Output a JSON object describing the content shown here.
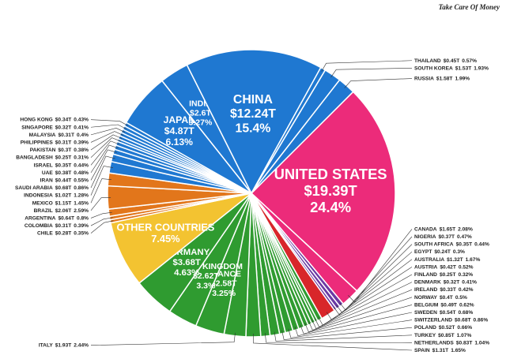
{
  "chart_data": {
    "type": "voronoi-treemap",
    "source": "Take Care Of Money",
    "categories": [
      "UNITED STATES",
      "CANADA",
      "NIGERIA",
      "SOUTH AFRICA",
      "EGYPT",
      "AUSTRALIA",
      "AUSTRIA",
      "FINLAND",
      "DENMARK",
      "IRELAND",
      "NORWAY",
      "BELGIUM",
      "SWEDEN",
      "SWITZERLAND",
      "POLAND",
      "TURKEY",
      "NETHERLANDS",
      "SPAIN",
      "ITALY",
      "FRANCE",
      "UNITED KINGDOM",
      "GERMANY",
      "OTHER COUNTRIES",
      "CHILE",
      "COLOMBIA",
      "ARGENTINA",
      "BRAZIL",
      "MEXICO",
      "INDONESIA",
      "SAUDI ARABIA",
      "IRAN",
      "UAE",
      "ISRAEL",
      "BANGLADESH",
      "PAKISTAN",
      "PHILIPPINES",
      "MALAYSIA",
      "SINGAPORE",
      "HONG KONG",
      "JAPAN",
      "INDIA",
      "CHINA",
      "THAILAND",
      "SOUTH KOREA",
      "RUSSIA"
    ],
    "colors": [
      "#ec2b7a",
      "#ec2b7a",
      "#6b3aa3",
      "#6b3aa3",
      "#6b3aa3",
      "#d8262a",
      "#2f9b30",
      "#2f9b30",
      "#2f9b30",
      "#2f9b30",
      "#2f9b30",
      "#2f9b30",
      "#2f9b30",
      "#2f9b30",
      "#2f9b30",
      "#2f9b30",
      "#2f9b30",
      "#2f9b30",
      "#2f9b30",
      "#2f9b30",
      "#2f9b30",
      "#2f9b30",
      "#f3c331",
      "#e2761b",
      "#e2761b",
      "#e2761b",
      "#e2761b",
      "#e2761b",
      "#1f78d1",
      "#1f78d1",
      "#1f78d1",
      "#1f78d1",
      "#1f78d1",
      "#1f78d1",
      "#1f78d1",
      "#1f78d1",
      "#1f78d1",
      "#1f78d1",
      "#1f78d1",
      "#1f78d1",
      "#1f78d1",
      "#1f78d1",
      "#1f78d1",
      "#1f78d1",
      "#1f78d1"
    ],
    "series": [
      {
        "values": [
          19.39,
          1.65,
          0.37,
          0.35,
          0.24,
          1.32,
          0.42,
          0.25,
          0.32,
          0.33,
          0.4,
          0.49,
          0.54,
          0.68,
          0.52,
          0.85,
          0.83,
          1.31,
          1.93,
          2.58,
          2.62,
          3.68,
          null,
          0.28,
          0.31,
          0.64,
          2.06,
          1.15,
          1.02,
          0.68,
          0.44,
          0.38,
          0.35,
          0.25,
          0.3,
          0.31,
          0.31,
          0.32,
          0.34,
          4.87,
          2.6,
          12.24,
          0.45,
          1.53,
          1.58
        ],
        "value_labels": [
          "$19.39T",
          "$1.65T",
          "$0.37T",
          "$0.35T",
          "$0.24T",
          "$1.32T",
          "$0.42T",
          "$0.25T",
          "$0.32T",
          "$0.33T",
          "$0.4T",
          "$0.49T",
          "$0.54T",
          "$0.68T",
          "$0.52T",
          "$0.85T",
          "$0.83T",
          "$1.31T",
          "$1.93T",
          "$2.58T",
          "$2.62T",
          "$3.68T",
          null,
          "$0.28T",
          "$0.31T",
          "$0.64T",
          "$2.06T",
          "$1.15T",
          "$1.02T",
          "$0.68T",
          "$0.44T",
          "$0.38T",
          "$0.35T",
          "$0.25T",
          "$0.3T",
          "$0.31T",
          "$0.31T",
          "$0.32T",
          "$0.34T",
          "$4.87T",
          "$2.6T",
          "$12.24T",
          "$0.45T",
          "$1.53T",
          "$1.58T"
        ]
      },
      {
        "values": [
          24.4,
          2.08,
          0.47,
          0.44,
          0.3,
          1.67,
          0.52,
          0.32,
          0.41,
          0.42,
          0.5,
          0.62,
          0.68,
          0.86,
          0.66,
          1.07,
          1.04,
          1.65,
          2.44,
          3.25,
          3.3,
          4.63,
          7.45,
          0.35,
          0.39,
          0.8,
          2.59,
          1.45,
          1.28,
          0.86,
          0.55,
          0.48,
          0.44,
          0.31,
          0.38,
          0.39,
          0.4,
          0.41,
          0.43,
          6.13,
          3.27,
          15.4,
          0.57,
          1.93,
          1.99
        ],
        "value_labels": [
          "24.4%",
          "2.08%",
          "0.47%",
          "0.44%",
          "0.3%",
          "1.67%",
          "0.52%",
          "0.32%",
          "0.41%",
          "0.42%",
          "0.5%",
          "0.62%",
          "0.68%",
          "0.86%",
          "0.66%",
          "1.07%",
          "1.04%",
          "1.65%",
          "2.44%",
          "3.25%",
          "3.3%",
          "4.63%",
          "7.45%",
          "0.35%",
          "0.39%",
          "0.8%",
          "2.59%",
          "1.45%",
          "1.28%",
          "0.86%",
          "0.55%",
          "0.48%",
          "0.44%",
          "0.31%",
          "0.38%",
          "0.39%",
          "0.4%",
          "0.41%",
          "0.43%",
          "6.13%",
          "3.27%",
          "15.4%",
          "0.57%",
          "1.93%",
          "1.99%"
        ]
      }
    ]
  }
}
